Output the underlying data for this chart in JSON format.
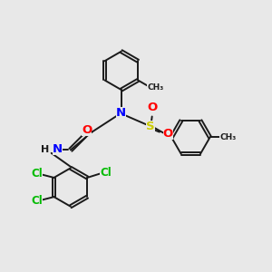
{
  "bg_color": "#e8e8e8",
  "bond_color": "#1a1a1a",
  "N_color": "#0000ff",
  "S_color": "#cccc00",
  "O_color": "#ff0000",
  "Cl_color": "#00bb00",
  "C_color": "#1a1a1a",
  "figsize": [
    3.0,
    3.0
  ],
  "dpi": 100,
  "xlim": [
    0,
    10
  ],
  "ylim": [
    0,
    10
  ]
}
